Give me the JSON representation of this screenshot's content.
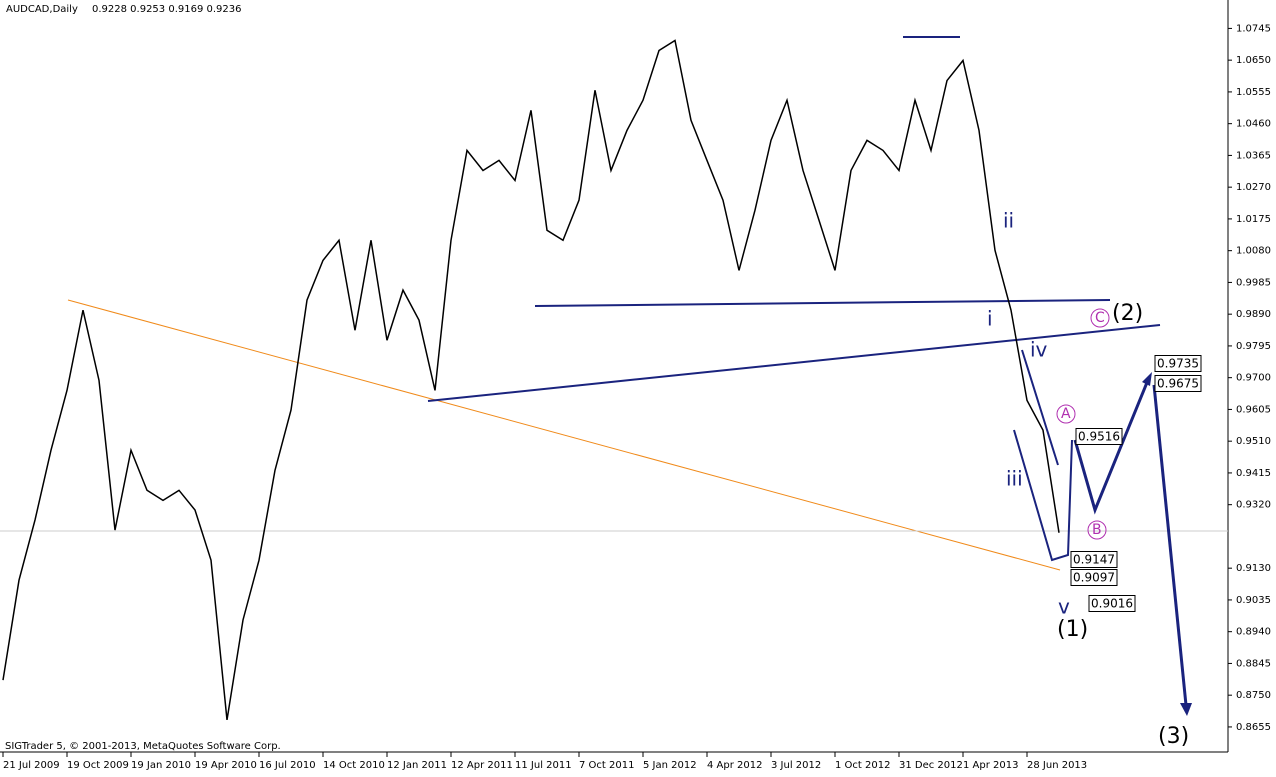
{
  "chart_data": {
    "type": "line",
    "title": "AUDCAD,Daily",
    "quote": "0.9228 0.9253 0.9169 0.9236",
    "footer": "SIGTrader 5, © 2001-2013, MetaQuotes Software Corp.",
    "categories": [
      "21 Jul 2009",
      null,
      null,
      null,
      "19 Oct 2009",
      null,
      null,
      null,
      "19 Jan 2010",
      null,
      null,
      null,
      "19 Apr 2010",
      null,
      null,
      null,
      "16 Jul 2010",
      null,
      null,
      null,
      "14 Oct 2010",
      null,
      null,
      null,
      "12 Jan 2011",
      null,
      null,
      null,
      "12 Apr 2011",
      null,
      null,
      null,
      "11 Jul 2011",
      null,
      null,
      null,
      "7 Oct 2011",
      null,
      null,
      null,
      "5 Jan 2012",
      null,
      null,
      null,
      "4 Apr 2012",
      null,
      null,
      null,
      "3 Jul 2012",
      null,
      null,
      null,
      "1 Oct 2012",
      null,
      null,
      null,
      "31 Dec 2012",
      null,
      null,
      null,
      "1 Apr 2013",
      null,
      null,
      null,
      "28 Jun 2013",
      null,
      null
    ],
    "series": [
      {
        "color": "#000000",
        "values": [
          0.8795,
          0.9094,
          0.9274,
          0.9483,
          0.9662,
          0.9902,
          0.9692,
          0.9244,
          0.9483,
          0.9363,
          0.9333,
          0.9363,
          0.9304,
          0.9154,
          0.8676,
          0.8975,
          0.9154,
          0.9423,
          0.9603,
          0.9932,
          1.0051,
          1.0111,
          0.9842,
          1.0111,
          0.9812,
          0.9962,
          0.9872,
          0.9662,
          1.0111,
          1.038,
          1.032,
          1.035,
          1.029,
          1.05,
          1.0141,
          1.0111,
          1.0231,
          1.056,
          1.032,
          1.044,
          1.053,
          1.0679,
          1.0709,
          1.047,
          1.035,
          1.0231,
          1.0021,
          1.0201,
          1.041,
          1.053,
          1.032,
          1.0171,
          1.0021,
          1.032,
          1.041,
          1.038,
          1.032,
          1.053,
          1.038,
          1.0589,
          1.0649,
          1.044,
          1.0081,
          0.9902,
          0.9632,
          0.9543,
          0.9236
        ]
      }
    ],
    "ylim": [
      0.858,
      1.083
    ],
    "yticks": [
      1.0745,
      {
        "value": 1.065,
        "label": "1.0650"
      },
      1.0555,
      {
        "value": 1.046,
        "label": "1.0460"
      },
      1.0365,
      {
        "value": 1.027,
        "label": "1.0270"
      },
      1.0175,
      {
        "value": 1.008,
        "label": "1.0080"
      },
      0.9985,
      {
        "value": 0.989,
        "label": "0.9890"
      },
      0.9795,
      {
        "value": 0.97,
        "label": "0.9700"
      },
      0.9605,
      {
        "value": 0.951,
        "label": "0.9510"
      },
      0.9415,
      {
        "value": 0.932,
        "label": "0.9320"
      },
      {
        "value": 0.913,
        "label": "0.9130"
      },
      0.9035,
      {
        "value": 0.894,
        "label": "0.8940"
      },
      0.8845,
      {
        "value": 0.875,
        "label": "0.8750"
      },
      0.8655
    ],
    "annotations": [
      "ii",
      "i",
      "iii",
      "iv",
      "v",
      "(1)",
      "(2)",
      "(3)",
      "A",
      "B",
      "C",
      "0.9735",
      "0.9675",
      "0.9516",
      "0.9147",
      "0.9097",
      "0.9016"
    ]
  }
}
